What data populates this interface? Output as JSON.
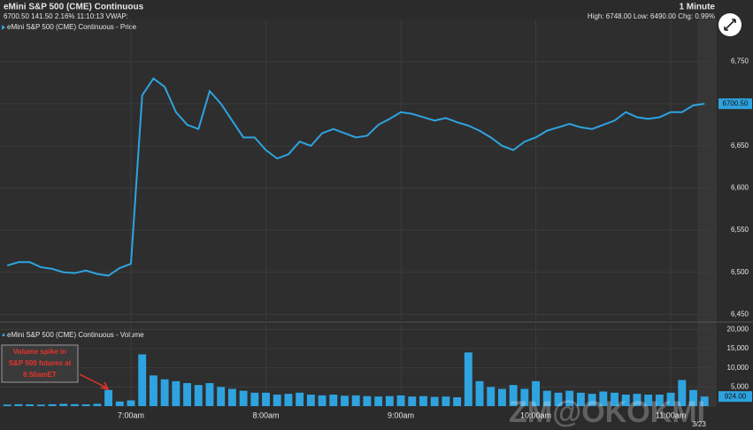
{
  "header": {
    "title": "eMini S&P 500 (CME) Continuous",
    "interval": "1 Minute",
    "quote": "6700.50 141.50 2.16% 11:10:13 VWAP:",
    "stats": "High: 6748.00 Low: 6490.00 Chg: 0.99%"
  },
  "chart_data": [
    {
      "type": "line",
      "title": "eMini S&P 500 (CME) Continuous - Price",
      "color": "#2ea3e0",
      "categories": [
        null,
        null,
        null,
        null,
        null,
        null,
        null,
        null,
        null,
        null,
        null,
        "7:00am",
        null,
        null,
        null,
        null,
        null,
        null,
        null,
        null,
        null,
        null,
        null,
        "8:00am",
        null,
        null,
        null,
        null,
        null,
        null,
        null,
        null,
        null,
        null,
        null,
        "9:00am",
        null,
        null,
        null,
        null,
        null,
        null,
        null,
        null,
        null,
        null,
        null,
        "10:00am",
        null,
        null,
        null,
        null,
        null,
        null,
        null,
        null,
        null,
        null,
        null,
        "11:00am",
        null,
        null,
        null
      ],
      "values": [
        6508,
        6512,
        6512,
        6506,
        6504,
        6500,
        6499,
        6502,
        6498,
        6496,
        6505,
        6510,
        6710,
        6730,
        6720,
        6690,
        6675,
        6670,
        6715,
        6700,
        6680,
        6660,
        6660,
        6645,
        6635,
        6640,
        6655,
        6650,
        6665,
        6670,
        6665,
        6660,
        6662,
        6675,
        6682,
        6690,
        6688,
        6684,
        6680,
        6683,
        6678,
        6674,
        6668,
        6660,
        6650,
        6645,
        6655,
        6660,
        6668,
        6672,
        6676,
        6672,
        6670,
        6675,
        6680,
        6690,
        6684,
        6682,
        6684,
        6690,
        6690,
        6698,
        6700
      ],
      "ylim": [
        6443,
        6800
      ],
      "yticks": [
        {
          "value": 6450,
          "label": "6,450"
        },
        {
          "value": 6500,
          "label": "6,500"
        },
        {
          "value": 6550,
          "label": "6,550"
        },
        {
          "value": 6600,
          "label": "6,600"
        },
        {
          "value": 6650,
          "label": "6,650"
        },
        {
          "value": 6700,
          "label": "6,700"
        },
        {
          "value": 6750,
          "label": "6,750"
        }
      ],
      "last_label": "6700.50",
      "grid": true
    },
    {
      "type": "bar",
      "title": "eMini S&P 500 (CME) Continuous - Volume",
      "color": "#2ea3e0",
      "values": [
        400,
        500,
        450,
        400,
        500,
        600,
        500,
        450,
        600,
        4200,
        1200,
        1500,
        13500,
        8000,
        7000,
        6500,
        6000,
        5500,
        6000,
        5000,
        4500,
        4000,
        3500,
        3500,
        3000,
        3200,
        3500,
        3000,
        2800,
        3000,
        2700,
        2800,
        2600,
        2500,
        2600,
        2800,
        2500,
        2600,
        2400,
        2500,
        2300,
        14000,
        6500,
        5000,
        4500,
        5500,
        4500,
        6500,
        4000,
        3500,
        4000,
        3500,
        3200,
        3800,
        3500,
        3000,
        3200,
        3000,
        3000,
        3500,
        6800,
        4200,
        2500
      ],
      "ylim": [
        0,
        21000
      ],
      "yticks": [
        {
          "value": 5000,
          "label": "5,000"
        },
        {
          "value": 10000,
          "label": "10,000"
        },
        {
          "value": 15000,
          "label": "15,000"
        },
        {
          "value": 20000,
          "label": "20,000"
        }
      ],
      "last_label": "924.00",
      "annotation": [
        "Volume spike in",
        "S&P 500 futures at",
        "6:50amET"
      ],
      "date_label": "3/23",
      "watermark": "ZM@OKOKMI",
      "grid": true
    }
  ]
}
